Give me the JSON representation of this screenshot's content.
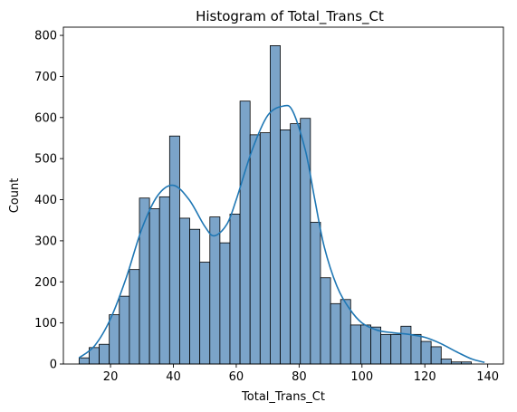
{
  "chart_data": {
    "type": "bar",
    "title": "Histogram of Total_Trans_Ct",
    "xlabel": "Total_Trans_Ct",
    "ylabel": "Count",
    "xlim": [
      5,
      145
    ],
    "ylim": [
      0,
      820
    ],
    "xticks": [
      20,
      40,
      60,
      80,
      100,
      120,
      140
    ],
    "yticks": [
      0,
      100,
      200,
      300,
      400,
      500,
      600,
      700,
      800
    ],
    "grid": false,
    "bar_color": "#7ba4c9",
    "bar_edge_color": "#000000",
    "kde_color": "#1f77b4",
    "bin_width": 3.2,
    "bins": [
      {
        "x": 10,
        "count": 15
      },
      {
        "x": 13.2,
        "count": 40
      },
      {
        "x": 16.4,
        "count": 48
      },
      {
        "x": 19.6,
        "count": 120
      },
      {
        "x": 22.8,
        "count": 165
      },
      {
        "x": 26,
        "count": 230
      },
      {
        "x": 29.2,
        "count": 404
      },
      {
        "x": 32.4,
        "count": 378
      },
      {
        "x": 35.6,
        "count": 407
      },
      {
        "x": 38.8,
        "count": 555
      },
      {
        "x": 42,
        "count": 355
      },
      {
        "x": 45.2,
        "count": 328
      },
      {
        "x": 48.4,
        "count": 248
      },
      {
        "x": 51.6,
        "count": 358
      },
      {
        "x": 54.8,
        "count": 295
      },
      {
        "x": 58,
        "count": 365
      },
      {
        "x": 61.2,
        "count": 640
      },
      {
        "x": 64.4,
        "count": 558
      },
      {
        "x": 67.6,
        "count": 563
      },
      {
        "x": 70.8,
        "count": 775
      },
      {
        "x": 74,
        "count": 570
      },
      {
        "x": 77.2,
        "count": 585
      },
      {
        "x": 80.4,
        "count": 598
      },
      {
        "x": 83.6,
        "count": 345
      },
      {
        "x": 86.8,
        "count": 210
      },
      {
        "x": 90,
        "count": 147
      },
      {
        "x": 93.2,
        "count": 157
      },
      {
        "x": 96.4,
        "count": 95
      },
      {
        "x": 99.6,
        "count": 95
      },
      {
        "x": 102.8,
        "count": 90
      },
      {
        "x": 106,
        "count": 72
      },
      {
        "x": 109.2,
        "count": 72
      },
      {
        "x": 112.4,
        "count": 92
      },
      {
        "x": 115.6,
        "count": 72
      },
      {
        "x": 118.8,
        "count": 55
      },
      {
        "x": 122,
        "count": 42
      },
      {
        "x": 125.2,
        "count": 12
      },
      {
        "x": 128.4,
        "count": 5
      },
      {
        "x": 131.6,
        "count": 5
      }
    ],
    "kde": {
      "x": [
        10,
        15,
        20,
        25,
        30,
        35,
        40,
        45,
        50,
        53,
        57,
        60,
        65,
        70,
        75,
        78,
        82,
        85,
        88,
        92,
        96,
        100,
        105,
        110,
        115,
        120,
        125,
        130,
        135,
        139
      ],
      "y": [
        15,
        45,
        110,
        210,
        330,
        410,
        435,
        400,
        335,
        312,
        340,
        400,
        520,
        605,
        628,
        615,
        520,
        400,
        285,
        190,
        135,
        100,
        82,
        76,
        72,
        65,
        50,
        30,
        12,
        4
      ]
    }
  }
}
